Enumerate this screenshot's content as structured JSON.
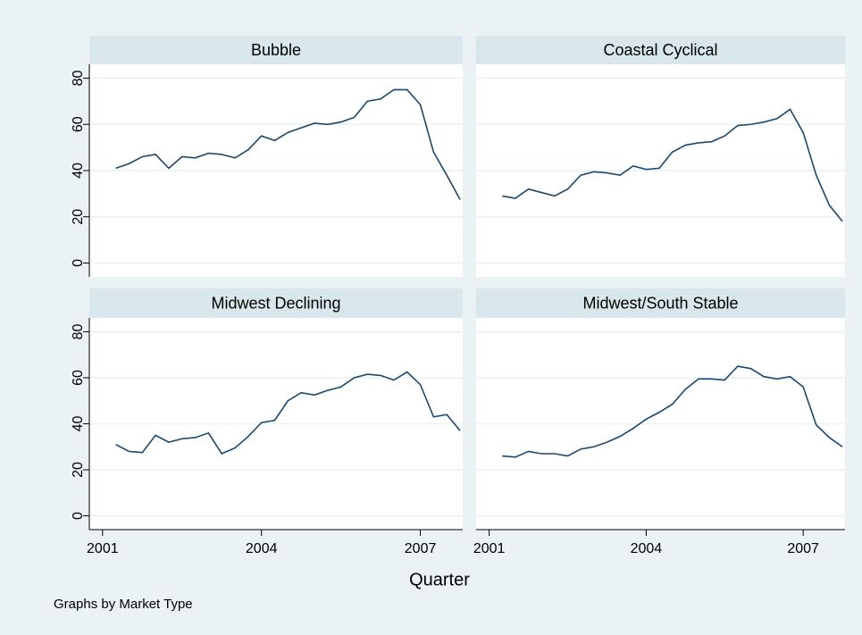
{
  "xlabel": "Quarter",
  "note": "Graphs by Market Type",
  "chart_data": [
    {
      "type": "line",
      "title": "Bubble",
      "color": "#1a476f",
      "grid": true,
      "x": [
        2001.25,
        2001.5,
        2001.75,
        2002,
        2002.25,
        2002.5,
        2002.75,
        2003,
        2003.25,
        2003.5,
        2003.75,
        2004,
        2004.25,
        2004.5,
        2004.75,
        2005,
        2005.25,
        2005.5,
        2005.75,
        2006,
        2006.25,
        2006.5,
        2006.75,
        2007,
        2007.25,
        2007.5,
        2007.75
      ],
      "values": [
        41,
        43,
        46,
        47,
        41,
        46,
        45.5,
        47.5,
        47,
        45.5,
        49,
        55,
        53,
        56.5,
        58.5,
        60.5,
        60,
        61,
        63,
        70,
        71,
        75,
        75,
        68.5,
        48,
        38,
        27.5
      ],
      "xlim": [
        2000.75,
        2007.8
      ],
      "ylim": [
        -6,
        86
      ],
      "yticks": [
        0,
        20,
        40,
        60,
        80
      ]
    },
    {
      "type": "line",
      "title": "Coastal Cyclical",
      "color": "#1a476f",
      "grid": true,
      "x": [
        2001.25,
        2001.5,
        2001.75,
        2002,
        2002.25,
        2002.5,
        2002.75,
        2003,
        2003.25,
        2003.5,
        2003.75,
        2004,
        2004.25,
        2004.5,
        2004.75,
        2005,
        2005.25,
        2005.5,
        2005.75,
        2006,
        2006.25,
        2006.5,
        2006.75,
        2007,
        2007.25,
        2007.5,
        2007.75
      ],
      "values": [
        29,
        28,
        32,
        30.5,
        29,
        32,
        38,
        39.5,
        39,
        38,
        42,
        40.5,
        41,
        48,
        51,
        52,
        52.5,
        55,
        59.5,
        60,
        61,
        62.5,
        66.5,
        56.5,
        38,
        25,
        18
      ],
      "xlim": [
        2000.75,
        2007.8
      ],
      "ylim": [
        -6,
        86
      ],
      "yticks": [
        0,
        20,
        40,
        60,
        80
      ]
    },
    {
      "type": "line",
      "title": "Midwest Declining",
      "color": "#1a476f",
      "grid": true,
      "x": [
        2001.25,
        2001.5,
        2001.75,
        2002,
        2002.25,
        2002.5,
        2002.75,
        2003,
        2003.25,
        2003.5,
        2003.75,
        2004,
        2004.25,
        2004.5,
        2004.75,
        2005,
        2005.25,
        2005.5,
        2005.75,
        2006,
        2006.25,
        2006.5,
        2006.75,
        2007,
        2007.25,
        2007.5,
        2007.75
      ],
      "values": [
        31,
        28,
        27.5,
        35,
        32,
        33.5,
        34,
        36,
        27,
        29.5,
        34.5,
        40.5,
        41.5,
        50,
        53.5,
        52.5,
        54.5,
        56,
        60,
        61.5,
        61,
        59,
        62.5,
        57,
        43,
        44,
        37
      ],
      "xlim": [
        2000.75,
        2007.8
      ],
      "xticks": [
        2001,
        2004,
        2007
      ],
      "ylim": [
        -6,
        86
      ],
      "yticks": [
        0,
        20,
        40,
        60,
        80
      ]
    },
    {
      "type": "line",
      "title": "Midwest/South Stable",
      "color": "#1a476f",
      "grid": true,
      "x": [
        2001.25,
        2001.5,
        2001.75,
        2002,
        2002.25,
        2002.5,
        2002.75,
        2003,
        2003.25,
        2003.5,
        2003.75,
        2004,
        2004.25,
        2004.5,
        2004.75,
        2005,
        2005.25,
        2005.5,
        2005.75,
        2006,
        2006.25,
        2006.5,
        2006.75,
        2007,
        2007.25,
        2007.5,
        2007.75
      ],
      "values": [
        26,
        25.5,
        28,
        27,
        27,
        26,
        29,
        30,
        32,
        34.5,
        38,
        42,
        45,
        48.5,
        55,
        59.5,
        59.5,
        59,
        65,
        64,
        60.5,
        59.5,
        60.5,
        56,
        39.5,
        34,
        30
      ],
      "xlim": [
        2000.75,
        2007.8
      ],
      "xticks": [
        2001,
        2004,
        2007
      ],
      "ylim": [
        -6,
        86
      ],
      "yticks": [
        0,
        20,
        40,
        60,
        80
      ]
    }
  ]
}
